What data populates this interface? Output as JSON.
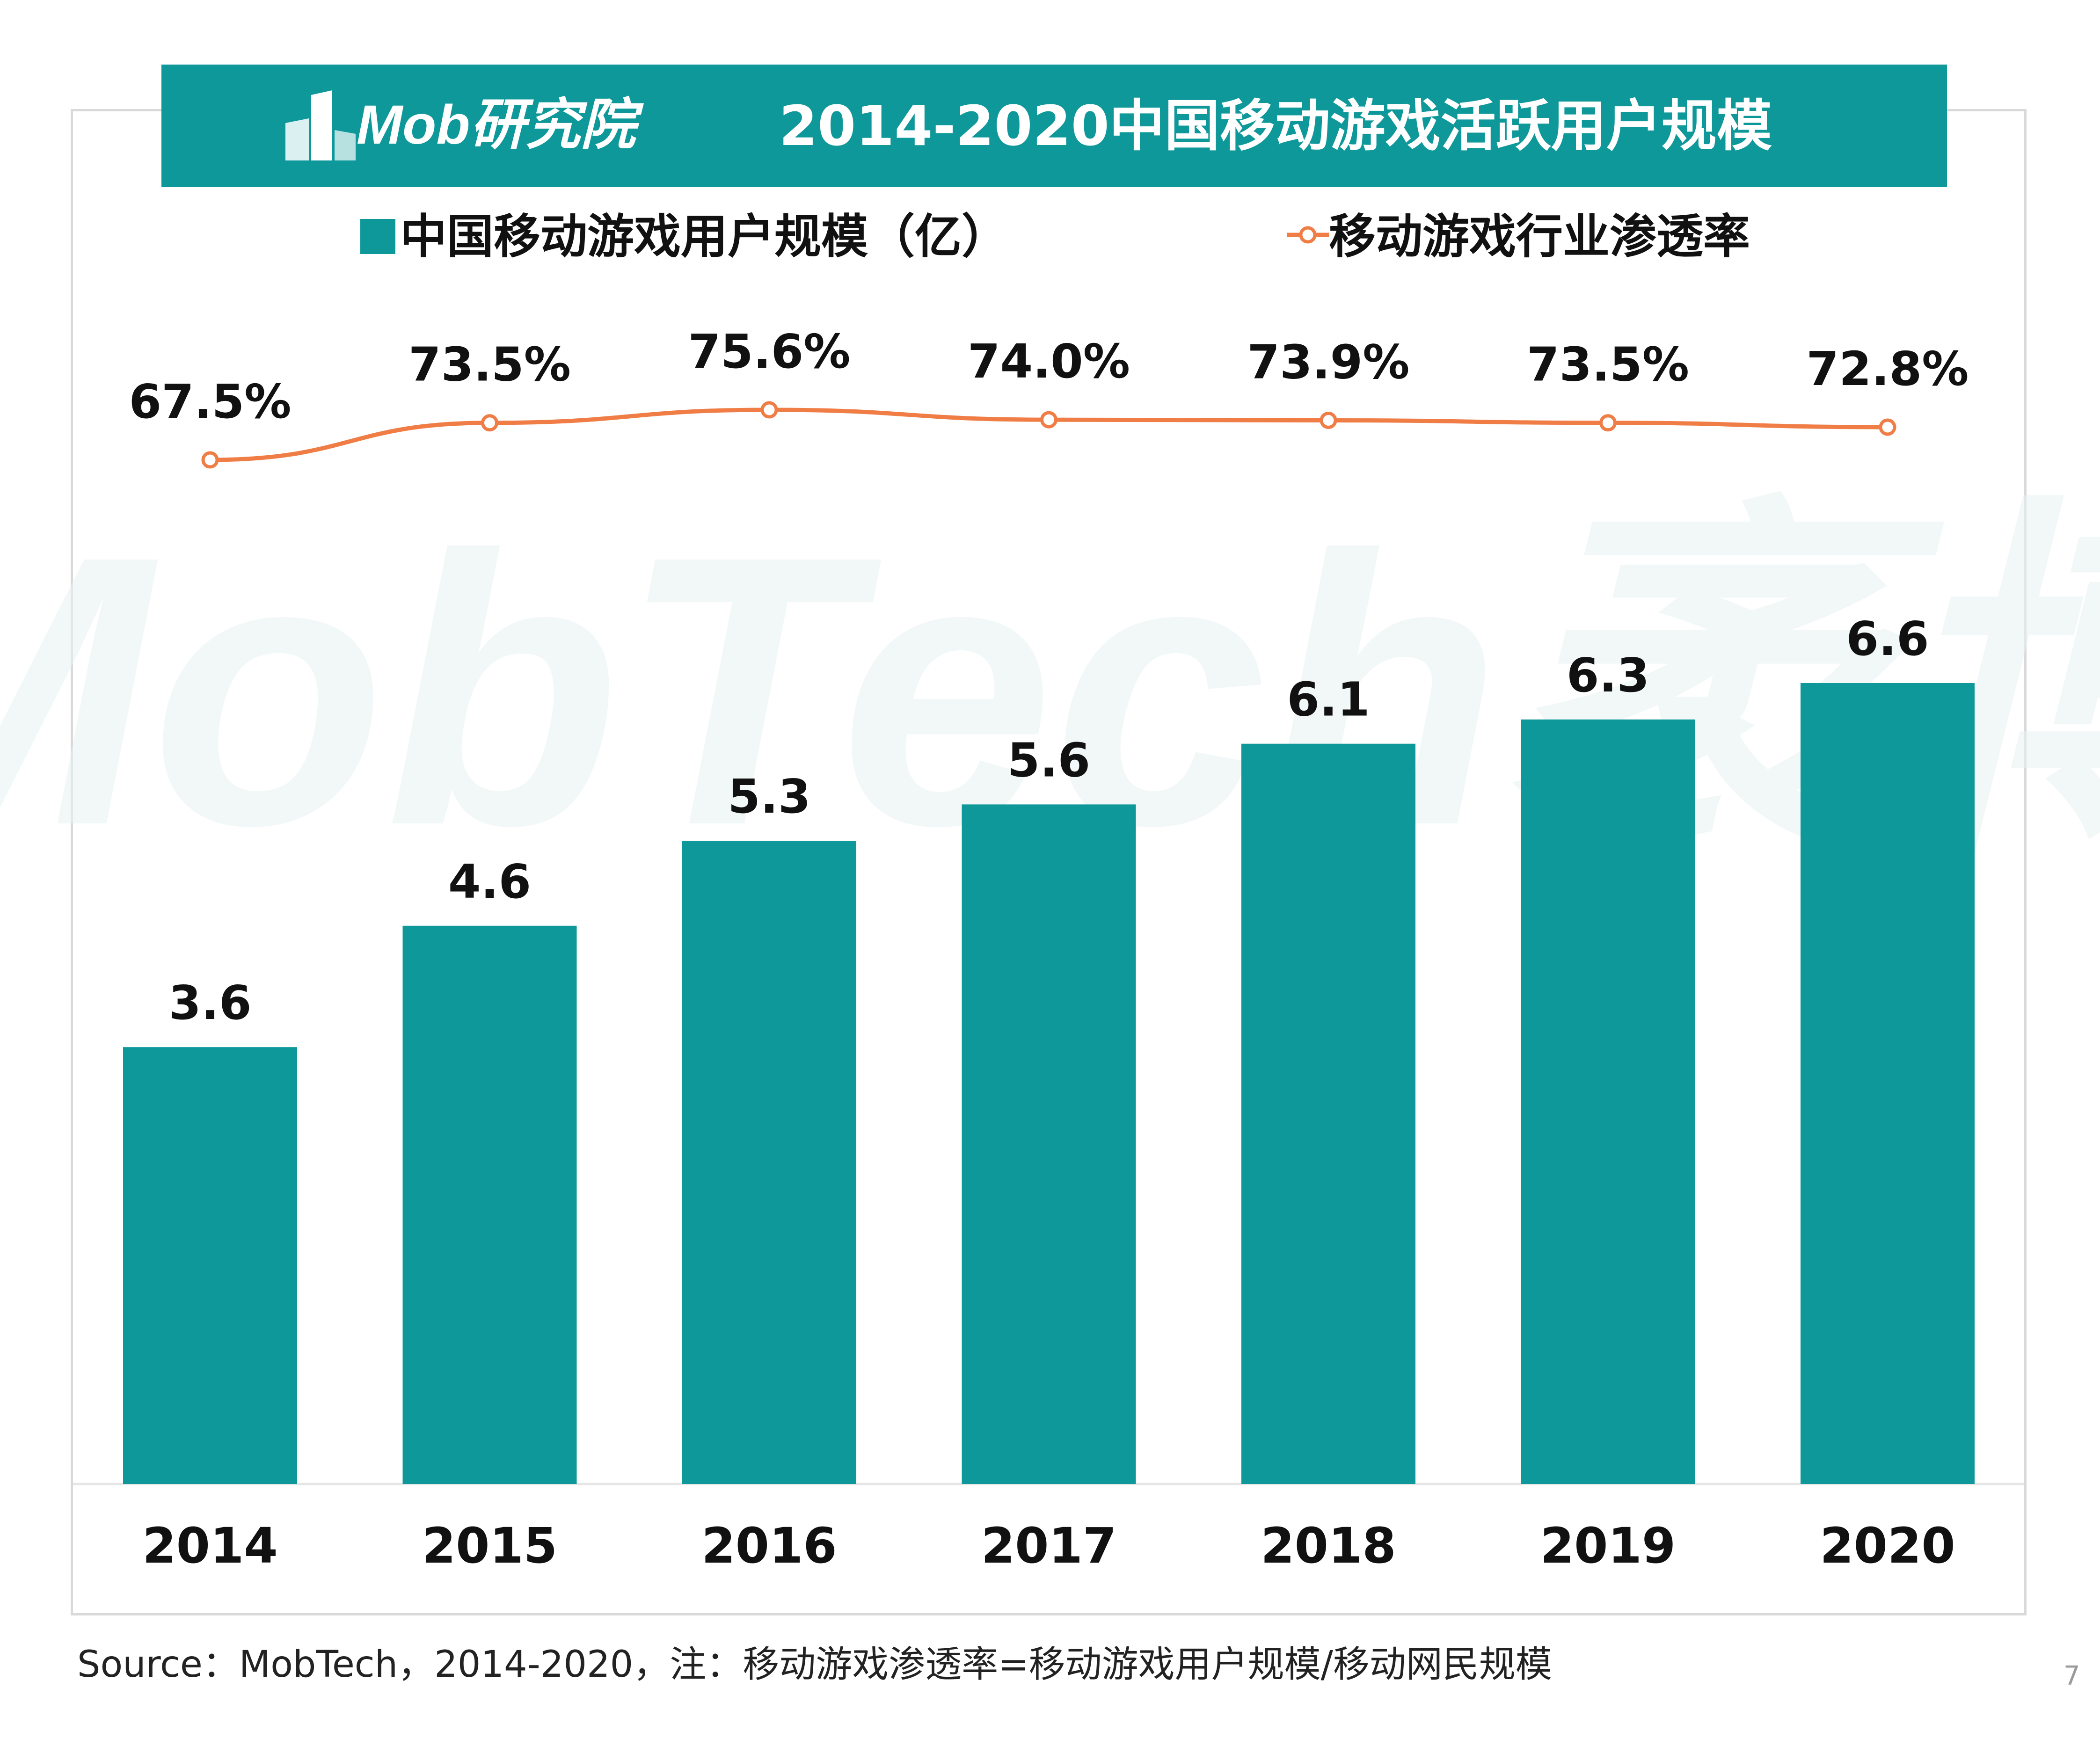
{
  "header": {
    "logo_text": "Mob研究院",
    "title": "2014-2020中国移动游戏活跃用户规模"
  },
  "legend": {
    "bar_label": "中国移动游戏用户规模（亿）",
    "line_label": "移动游戏行业渗透率"
  },
  "watermark": "MobTech袤博",
  "footer": {
    "source": "Source：MobTech，2014-2020，注：移动游戏渗透率=移动游戏用户规模/移动网民规模",
    "page_number": "7"
  },
  "colors": {
    "bar": "#0e989a",
    "line": "#ef7d45",
    "banner": "#0e989a"
  },
  "chart_data": {
    "type": "bar",
    "categories": [
      "2014",
      "2015",
      "2016",
      "2017",
      "2018",
      "2019",
      "2020"
    ],
    "series": [
      {
        "name": "中国移动游戏用户规模（亿）",
        "type": "bar",
        "values": [
          3.6,
          4.6,
          5.3,
          5.6,
          6.1,
          6.3,
          6.6
        ],
        "labels": [
          "3.6",
          "4.6",
          "5.3",
          "5.6",
          "6.1",
          "6.3",
          "6.6"
        ]
      },
      {
        "name": "移动游戏行业渗透率",
        "type": "line",
        "values": [
          67.5,
          73.5,
          75.6,
          74.0,
          73.9,
          73.5,
          72.8
        ],
        "labels": [
          "67.5%",
          "73.5%",
          "75.6%",
          "74.0%",
          "73.9%",
          "73.5%",
          "72.8%"
        ]
      }
    ],
    "title": "2014-2020中国移动游戏活跃用户规模",
    "bar_ylim": [
      0,
      7.4
    ],
    "line_ylim": [
      60,
      80
    ],
    "grid": false,
    "legend": "top"
  }
}
